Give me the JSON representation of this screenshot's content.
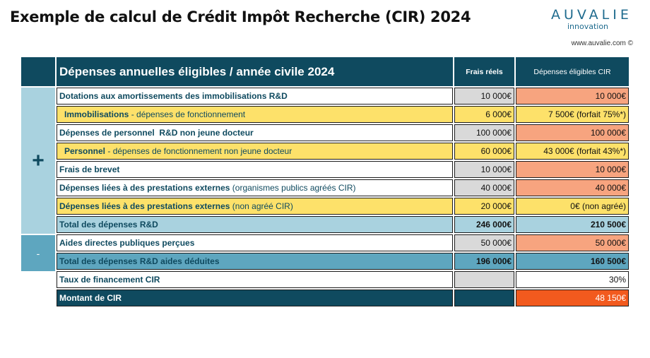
{
  "title": "Exemple de calcul de Crédit Impôt Recherche (CIR) 2024",
  "logo": {
    "name": "AUVALIE",
    "sub": "innovation"
  },
  "website": "www.auvalie.com ©",
  "signs": {
    "plus": "+",
    "minus": "-"
  },
  "header": {
    "label": "Dépenses annuelles éligibles / année civile 2024",
    "col_reel": "Frais réels",
    "col_eligible": "Dépenses éligibles CIR"
  },
  "rows": [
    {
      "label": "Dotations aux amortissements des immobilisations R&D",
      "reel": "10 000€",
      "eligible": "10 000€"
    },
    {
      "label_bold": "Immobilisations",
      "label_rest": " - dépenses de fonctionnement",
      "reel": "6 000€",
      "eligible": "7 500€ (forfait 75%*)"
    },
    {
      "label": "Dépenses de personnel  R&D non jeune docteur",
      "reel": "100 000€",
      "eligible": "100 000€"
    },
    {
      "label_bold": "Personnel",
      "label_rest": " - dépenses de fonctionnement non jeune docteur",
      "reel": "60 000€",
      "eligible": "43 000€ (forfait 43%*)"
    },
    {
      "label": "Frais de brevet",
      "reel": "10 000€",
      "eligible": "10 000€"
    },
    {
      "label_bold": "Dépenses liées à des prestations externes",
      "label_rest": " (organismes publics agréés CIR)",
      "reel": "40 000€",
      "eligible": "40 000€"
    },
    {
      "label_bold": "Dépenses liées à des prestations externes",
      "label_rest": " (non agréé CIR)",
      "reel": "20 000€",
      "eligible": "0€ (non agréé)"
    },
    {
      "label": "Total des dépenses R&D",
      "reel": "246 000€",
      "eligible": "210 500€"
    },
    {
      "label": "Aides directes publiques perçues",
      "reel": "50 000€",
      "eligible": "50 000€"
    },
    {
      "label": "Total des dépenses R&D aides déduites",
      "reel": "196 000€",
      "eligible": "160 500€"
    },
    {
      "label": "Taux de financement CIR",
      "reel": "",
      "eligible": "30%"
    },
    {
      "label": "Montant de CIR",
      "reel": "",
      "eligible": "48 150€"
    }
  ]
}
